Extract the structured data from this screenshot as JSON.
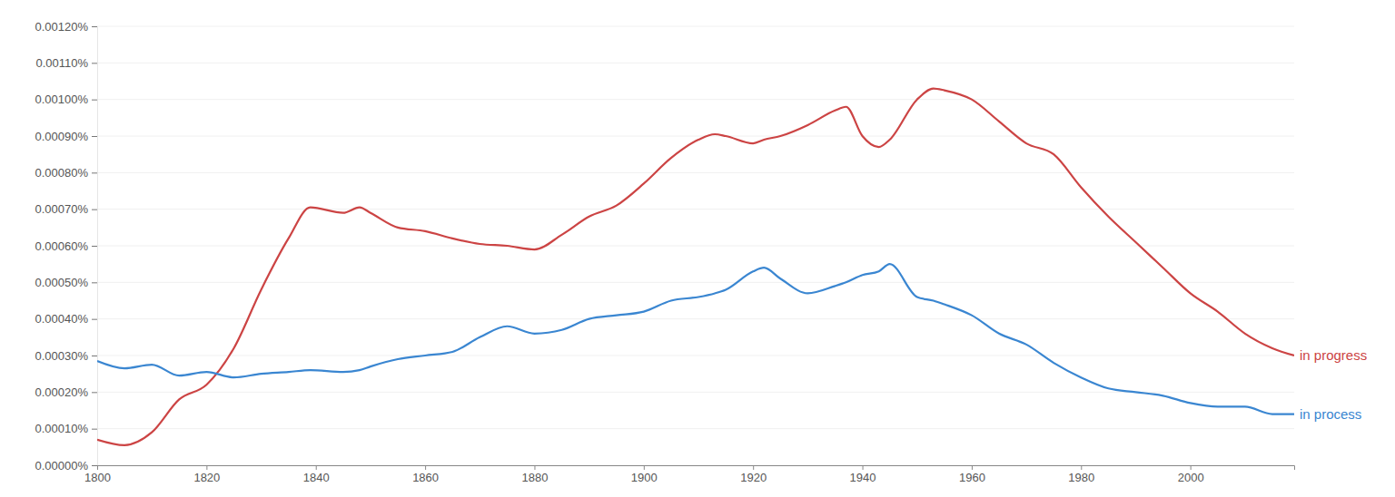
{
  "chart_data": {
    "type": "line",
    "x": [
      1800,
      1805,
      1810,
      1815,
      1820,
      1825,
      1830,
      1835,
      1839,
      1845,
      1848,
      1850,
      1855,
      1860,
      1865,
      1870,
      1875,
      1880,
      1885,
      1890,
      1895,
      1900,
      1905,
      1910,
      1913,
      1915,
      1920,
      1922,
      1925,
      1930,
      1935,
      1937,
      1940,
      1943,
      1945,
      1950,
      1953,
      1955,
      1960,
      1965,
      1970,
      1975,
      1980,
      1985,
      1990,
      1995,
      2000,
      2005,
      2010,
      2015,
      2019
    ],
    "series": [
      {
        "name": "in progress",
        "color": "#cc4444",
        "values": [
          7e-05,
          5.5e-05,
          9e-05,
          0.00018,
          0.00022,
          0.00032,
          0.00048,
          0.00062,
          0.000705,
          0.00069,
          0.000705,
          0.00069,
          0.00065,
          0.00064,
          0.00062,
          0.000605,
          0.0006,
          0.00059,
          0.00063,
          0.00068,
          0.00071,
          0.00077,
          0.00084,
          0.00089,
          0.000905,
          0.0009,
          0.00088,
          0.00089,
          0.0009,
          0.00093,
          0.00097,
          0.00098,
          0.0009,
          0.00087,
          0.00089,
          0.001,
          0.00103,
          0.001025,
          0.001,
          0.00094,
          0.00088,
          0.00085,
          0.00076,
          0.00068,
          0.00061,
          0.00054,
          0.00047,
          0.00042,
          0.00036,
          0.00032,
          0.0003
        ]
      },
      {
        "name": "in process",
        "color": "#3a86d1",
        "values": [
          0.000285,
          0.000265,
          0.000275,
          0.000245,
          0.000255,
          0.00024,
          0.00025,
          0.000255,
          0.00026,
          0.000255,
          0.00026,
          0.00027,
          0.00029,
          0.0003,
          0.00031,
          0.00035,
          0.00038,
          0.00036,
          0.00037,
          0.0004,
          0.00041,
          0.00042,
          0.00045,
          0.00046,
          0.00047,
          0.00048,
          0.00053,
          0.00054,
          0.00051,
          0.00047,
          0.00049,
          0.0005,
          0.00052,
          0.00053,
          0.00055,
          0.00046,
          0.00045,
          0.00044,
          0.00041,
          0.00036,
          0.00033,
          0.00028,
          0.00024,
          0.00021,
          0.0002,
          0.00019,
          0.00017,
          0.00016,
          0.00016,
          0.00014,
          0.00014
        ]
      }
    ],
    "xlim": [
      1800,
      2019
    ],
    "xticks": [
      1800,
      1820,
      1840,
      1860,
      1880,
      1900,
      1920,
      1940,
      1960,
      1980,
      2000
    ],
    "ylim": [
      0,
      0.0012
    ],
    "yticks": [
      {
        "value": 0,
        "label": "0.00000%"
      },
      {
        "value": 0.0001,
        "label": "0.00010%"
      },
      {
        "value": 0.0002,
        "label": "0.00020%"
      },
      {
        "value": 0.0003,
        "label": "0.00030%"
      },
      {
        "value": 0.0004,
        "label": "0.00040%"
      },
      {
        "value": 0.0005,
        "label": "0.00050%"
      },
      {
        "value": 0.0006,
        "label": "0.00060%"
      },
      {
        "value": 0.0007,
        "label": "0.00070%"
      },
      {
        "value": 0.0008,
        "label": "0.00080%"
      },
      {
        "value": 0.0009,
        "label": "0.00090%"
      },
      {
        "value": 0.001,
        "label": "0.00100%"
      },
      {
        "value": 0.0011,
        "label": "0.00110%"
      },
      {
        "value": 0.0012,
        "label": "0.00120%"
      }
    ],
    "grid": true
  }
}
